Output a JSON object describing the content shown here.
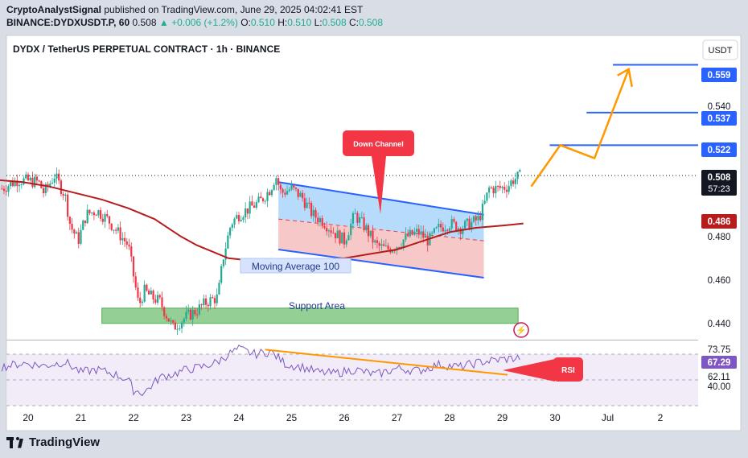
{
  "header": {
    "author": "CryptoAnalystSignal",
    "published": "published on TradingView.com, June 29, 2025 04:02:41 EST",
    "symbol_line": "BINANCE:DYDXUSDT.P, 60",
    "last": "0.508",
    "change": "+0.006 (+1.2%)",
    "o_label": "O:",
    "o": "0.510",
    "h_label": "H:",
    "h": "0.510",
    "l_label": "L:",
    "l": "0.508",
    "c_label": "C:",
    "c": "0.508"
  },
  "chart": {
    "title": "DYDX / TetherUS PERPETUAL CONTRACT · 1h · BINANCE",
    "currency": "USDT",
    "annotations": {
      "down_channel": "Down Channel",
      "moving_average": "Moving Average 100",
      "support_area": "Support Area",
      "rsi": "RSI"
    },
    "price_tags": {
      "t559": "0.559",
      "t537": "0.537",
      "t522": "0.522",
      "last": "0.508",
      "countdown": "57:23",
      "ma": "0.486"
    },
    "rsi_tags": {
      "a": "73.75",
      "b": "67.29",
      "c": "62.11",
      "d": "40.00"
    },
    "colors": {
      "up": "#22ab94",
      "down": "#f23645",
      "ma": "#b71c1c",
      "channel": "#2962ff",
      "projection": "#ff9800",
      "support": "#4caf50",
      "rsi": "#7e57c2"
    }
  },
  "chart_data": {
    "type": "candlestick",
    "y_ticks": [
      "0.540",
      "0.480",
      "0.460",
      "0.440"
    ],
    "x_ticks": [
      "20",
      "21",
      "22",
      "23",
      "24",
      "25",
      "26",
      "27",
      "28",
      "29",
      "30",
      "Jul",
      "2"
    ],
    "ylim": [
      0.4325,
      0.5725
    ],
    "levels": [
      0.559,
      0.537,
      0.522
    ],
    "last_price": 0.508,
    "ma100": 0.486,
    "rsi_ticks": [
      "73.75",
      "62.11",
      "40.00"
    ],
    "rsi_current": 67.29,
    "rsi_ylim": [
      30,
      80
    ],
    "price_path": [
      [
        19.5,
        0.502
      ],
      [
        19.8,
        0.506
      ],
      [
        20.2,
        0.505
      ],
      [
        20.3,
        0.5
      ],
      [
        20.5,
        0.508
      ],
      [
        20.7,
        0.499
      ],
      [
        20.8,
        0.485
      ],
      [
        20.95,
        0.478
      ],
      [
        21.1,
        0.49
      ],
      [
        21.3,
        0.492
      ],
      [
        21.5,
        0.488
      ],
      [
        21.7,
        0.482
      ],
      [
        21.9,
        0.476
      ],
      [
        22.0,
        0.462
      ],
      [
        22.1,
        0.448
      ],
      [
        22.2,
        0.455
      ],
      [
        22.35,
        0.452
      ],
      [
        22.5,
        0.45
      ],
      [
        22.6,
        0.445
      ],
      [
        22.75,
        0.438
      ],
      [
        22.9,
        0.441
      ],
      [
        23.0,
        0.443
      ],
      [
        23.2,
        0.446
      ],
      [
        23.4,
        0.45
      ],
      [
        23.6,
        0.452
      ],
      [
        23.7,
        0.47
      ],
      [
        23.85,
        0.486
      ],
      [
        24.0,
        0.49
      ],
      [
        24.2,
        0.493
      ],
      [
        24.4,
        0.496
      ],
      [
        24.6,
        0.502
      ],
      [
        24.7,
        0.508
      ],
      [
        24.8,
        0.5
      ],
      [
        25.0,
        0.502
      ],
      [
        25.2,
        0.498
      ],
      [
        25.4,
        0.49
      ],
      [
        25.6,
        0.487
      ],
      [
        25.8,
        0.482
      ],
      [
        26.0,
        0.478
      ],
      [
        26.1,
        0.484
      ],
      [
        26.2,
        0.49
      ],
      [
        26.4,
        0.484
      ],
      [
        26.6,
        0.476
      ],
      [
        26.8,
        0.474
      ],
      [
        27.0,
        0.476
      ],
      [
        27.2,
        0.48
      ],
      [
        27.4,
        0.482
      ],
      [
        27.6,
        0.478
      ],
      [
        27.8,
        0.484
      ],
      [
        28.0,
        0.486
      ],
      [
        28.2,
        0.484
      ],
      [
        28.4,
        0.486
      ],
      [
        28.55,
        0.488
      ],
      [
        28.65,
        0.494
      ],
      [
        28.75,
        0.502
      ],
      [
        28.9,
        0.502
      ],
      [
        29.1,
        0.503
      ],
      [
        29.2,
        0.506
      ],
      [
        29.35,
        0.508
      ]
    ],
    "ma_path": [
      [
        19.4,
        0.506
      ],
      [
        19.9,
        0.505
      ],
      [
        20.4,
        0.503
      ],
      [
        20.9,
        0.5
      ],
      [
        21.4,
        0.497
      ],
      [
        21.9,
        0.493
      ],
      [
        22.4,
        0.488
      ],
      [
        22.9,
        0.48
      ],
      [
        23.2,
        0.476
      ],
      [
        23.5,
        0.473
      ],
      [
        23.8,
        0.47
      ],
      [
        24.2,
        0.469
      ],
      [
        24.6,
        0.468
      ],
      [
        25.0,
        0.468
      ],
      [
        25.5,
        0.469
      ],
      [
        26.0,
        0.47
      ],
      [
        26.5,
        0.472
      ],
      [
        27.0,
        0.474
      ],
      [
        27.5,
        0.478
      ],
      [
        28.0,
        0.482
      ],
      [
        28.5,
        0.484
      ],
      [
        29.0,
        0.485
      ],
      [
        29.4,
        0.486
      ]
    ],
    "channel": {
      "upper": [
        [
          24.75,
          0.505
        ],
        [
          28.65,
          0.49
        ]
      ],
      "mid": [
        [
          24.75,
          0.488
        ],
        [
          28.65,
          0.478
        ]
      ],
      "lower": [
        [
          24.75,
          0.474
        ],
        [
          28.65,
          0.461
        ]
      ]
    },
    "support_area": {
      "x": [
        21.4,
        29.3
      ],
      "y": [
        0.44,
        0.447
      ]
    },
    "projection": [
      [
        29.55,
        0.503
      ],
      [
        30.1,
        0.522
      ],
      [
        30.75,
        0.516
      ],
      [
        31.4,
        0.557
      ]
    ],
    "level_lines": [
      {
        "value": 0.559,
        "x_start": 31.1
      },
      {
        "value": 0.537,
        "x_start": 30.6
      },
      {
        "value": 0.522,
        "x_start": 29.9
      }
    ],
    "rsi_path": [
      [
        19.5,
        60
      ],
      [
        19.9,
        63
      ],
      [
        20.3,
        61
      ],
      [
        20.7,
        64
      ],
      [
        21.0,
        56
      ],
      [
        21.3,
        58
      ],
      [
        21.6,
        55
      ],
      [
        21.9,
        50
      ],
      [
        22.0,
        42
      ],
      [
        22.2,
        40
      ],
      [
        22.5,
        52
      ],
      [
        22.8,
        55
      ],
      [
        23.0,
        58
      ],
      [
        23.3,
        60
      ],
      [
        23.6,
        64
      ],
      [
        23.8,
        70
      ],
      [
        24.0,
        74
      ],
      [
        24.3,
        70
      ],
      [
        24.6,
        72
      ],
      [
        24.9,
        62
      ],
      [
        25.2,
        60
      ],
      [
        25.5,
        56
      ],
      [
        25.8,
        55
      ],
      [
        26.2,
        58
      ],
      [
        26.6,
        54
      ],
      [
        27.0,
        59
      ],
      [
        27.4,
        57
      ],
      [
        27.8,
        62
      ],
      [
        28.2,
        60
      ],
      [
        28.6,
        64
      ],
      [
        29.0,
        66
      ],
      [
        29.35,
        67.3
      ]
    ],
    "rsi_trend": [
      [
        24.5,
        73.5
      ],
      [
        29.1,
        54
      ]
    ]
  }
}
